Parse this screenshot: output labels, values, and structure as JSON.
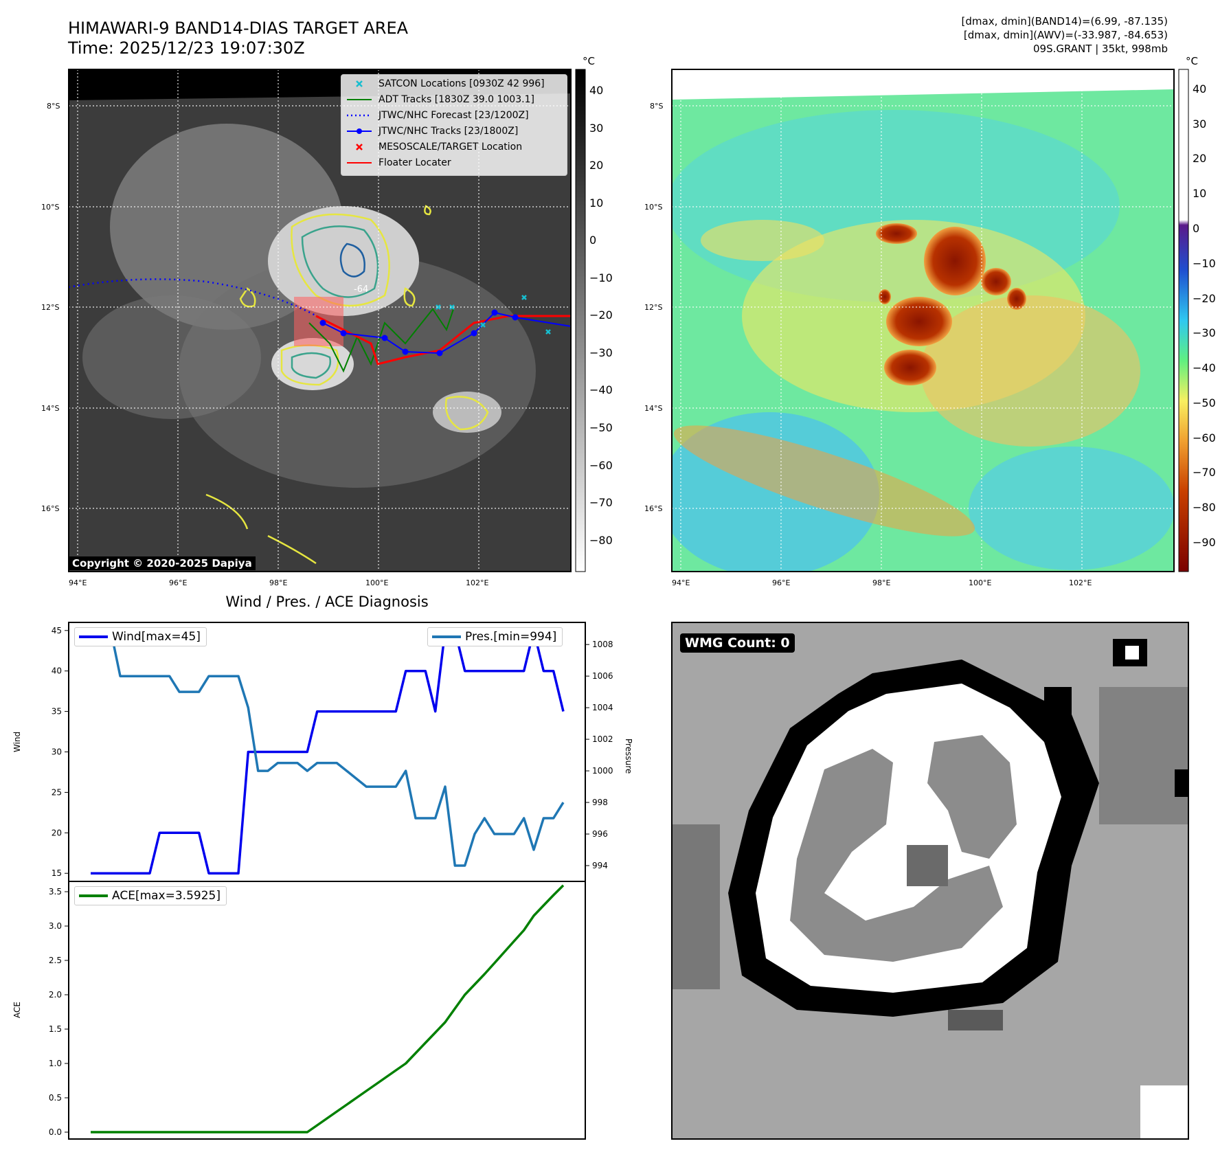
{
  "header": {
    "title_line1": "HIMAWARI-9 BAND14-DIAS TARGET AREA",
    "title_line2": "Time: 2025/12/23 19:07:30Z",
    "info_line1": "[dmax, dmin](BAND14)=(6.99, -87.135)",
    "info_line2": "[dmax, dmin](AWV)=(-33.987, -84.653)",
    "info_line3": "09S.GRANT | 35kt, 998mb"
  },
  "map_axes": {
    "lat_ticks": [
      "8°S",
      "10°S",
      "12°S",
      "14°S",
      "16°S"
    ],
    "lon_ticks": [
      "94°E",
      "96°E",
      "98°E",
      "100°E",
      "102°E"
    ],
    "contour_label": "-64"
  },
  "colorbar_ir": {
    "unit": "°C",
    "ticks": [
      "40",
      "30",
      "20",
      "10",
      "0",
      "−10",
      "−20",
      "−30",
      "−40",
      "−50",
      "−60",
      "−70",
      "−80"
    ]
  },
  "colorbar_awv": {
    "unit": "°C",
    "ticks": [
      "40",
      "30",
      "20",
      "10",
      "0",
      "−10",
      "−20",
      "−30",
      "−40",
      "−50",
      "−60",
      "−70",
      "−80",
      "−90"
    ]
  },
  "legend": {
    "items": [
      {
        "label": "SATCON Locations [0930Z 42 996]",
        "color": "#17becf",
        "kind": "x"
      },
      {
        "label": "ADT Tracks [1830Z 39.0 1003.1]",
        "color": "#008000",
        "kind": "line"
      },
      {
        "label": "JTWC/NHC Forecast [23/1200Z]",
        "color": "#0000ff",
        "kind": "dotted"
      },
      {
        "label": "JTWC/NHC Tracks [23/1800Z]",
        "color": "#0000ff",
        "kind": "line-dot"
      },
      {
        "label": "MESOSCALE/TARGET Location",
        "color": "#ff0000",
        "kind": "x"
      },
      {
        "label": "Floater Locater",
        "color": "#ff0000",
        "kind": "line"
      }
    ]
  },
  "copyright": "Copyright © 2020-2025 Dapiya",
  "wmg_label": "WMG Count: 0",
  "chart_data": [
    {
      "type": "line",
      "title": "Wind / Pres. / ACE Diagnosis",
      "xlabel": "",
      "ylabel": "Wind",
      "ylabel_right": "Pressure",
      "ylim": [
        14,
        46
      ],
      "ylim_right": [
        993,
        1009.4
      ],
      "yticks": [
        15,
        20,
        25,
        30,
        35,
        40,
        45
      ],
      "yticks_right": [
        994,
        996,
        998,
        1000,
        1002,
        1004,
        1006,
        1008
      ],
      "series": [
        {
          "name": "Wind[max=45]",
          "color": "#0000ee",
          "axis": "left",
          "values": [
            15,
            15,
            15,
            15,
            15,
            15,
            15,
            20,
            20,
            20,
            20,
            20,
            15,
            15,
            15,
            15,
            30,
            30,
            30,
            30,
            30,
            30,
            30,
            35,
            35,
            35,
            35,
            35,
            35,
            35,
            35,
            35,
            40,
            40,
            40,
            35,
            45,
            45,
            40,
            40,
            40,
            40,
            40,
            40,
            40,
            45,
            40,
            40,
            35
          ]
        },
        {
          "name": "Pres.[min=994]",
          "color": "#1f77b4",
          "axis": "right",
          "values": [
            1009,
            1009,
            1009,
            1006,
            1006,
            1006,
            1006,
            1006,
            1006,
            1005,
            1005,
            1005,
            1006,
            1006,
            1006,
            1006,
            1004,
            1000,
            1000,
            1000.5,
            1000.5,
            1000.5,
            1000,
            1000.5,
            1000.5,
            1000.5,
            1000,
            999.5,
            999,
            999,
            999,
            999,
            1000,
            997,
            997,
            997,
            999,
            994,
            994,
            996,
            997,
            996,
            996,
            996,
            997,
            995,
            997,
            997,
            998
          ]
        }
      ]
    },
    {
      "type": "line",
      "title": "",
      "xlabel": "",
      "ylabel": "ACE",
      "ylim": [
        -0.1,
        3.65
      ],
      "yticks": [
        0.0,
        0.5,
        1.0,
        1.5,
        2.0,
        2.5,
        3.0,
        3.5
      ],
      "series": [
        {
          "name": "ACE[max=3.5925]",
          "color": "#008000",
          "values": [
            0,
            0,
            0,
            0,
            0,
            0,
            0,
            0,
            0,
            0,
            0,
            0,
            0,
            0,
            0,
            0,
            0,
            0,
            0,
            0,
            0,
            0,
            0,
            0.1,
            0.2,
            0.3,
            0.4,
            0.5,
            0.6,
            0.7,
            0.8,
            0.9,
            1.0,
            1.15,
            1.3,
            1.45,
            1.6,
            1.8,
            2.0,
            2.15,
            2.3,
            2.46,
            2.62,
            2.78,
            2.94,
            3.15,
            3.3,
            3.45,
            3.5925
          ]
        }
      ]
    }
  ]
}
